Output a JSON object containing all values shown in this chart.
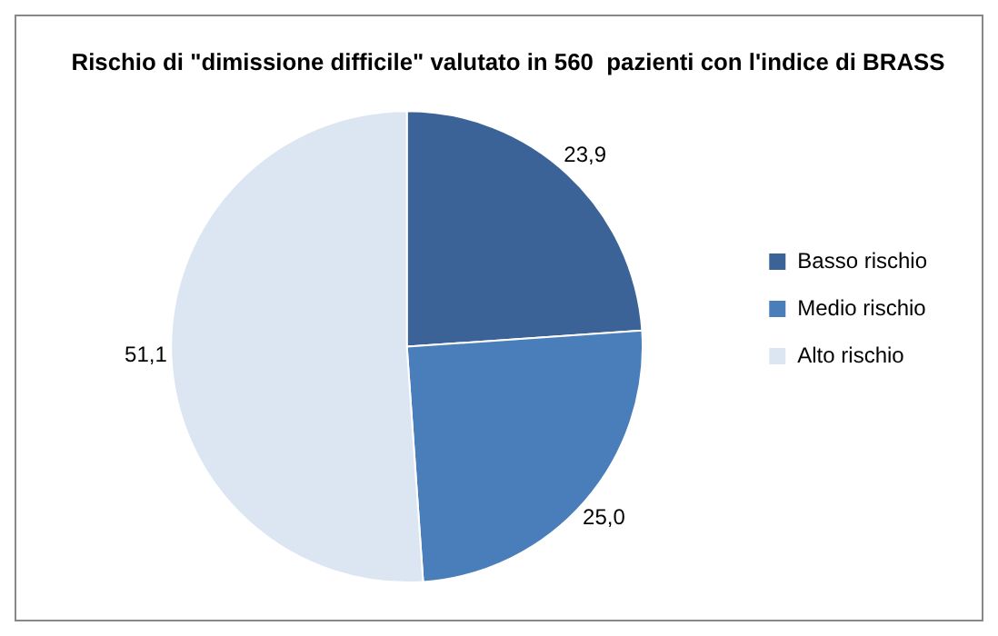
{
  "chart_data": {
    "type": "pie",
    "title": "Rischio di \"dimissione difficile\" valutato in 560  pazienti con l'indice di BRASS",
    "categories": [
      "Basso rischio",
      "Medio rischio",
      "Alto rischio"
    ],
    "values": [
      23.9,
      25.0,
      51.1
    ],
    "value_labels": [
      "23,9",
      "25,0",
      "51,1"
    ],
    "colors": [
      "#3b6397",
      "#4a7ebb",
      "#dce6f2"
    ],
    "legend": "right"
  }
}
